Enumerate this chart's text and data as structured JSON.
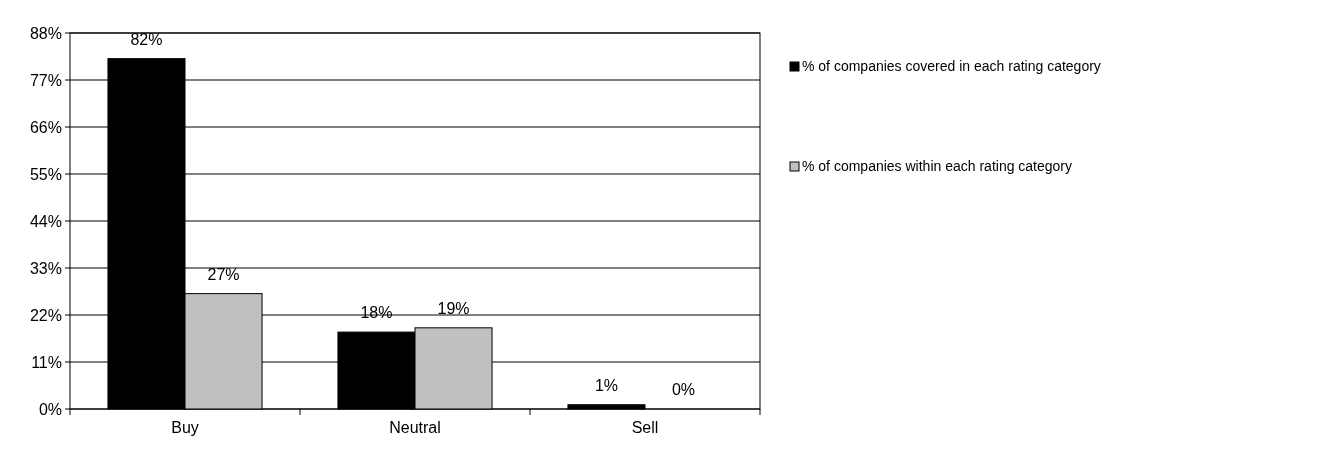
{
  "chart_data": {
    "type": "bar",
    "categories": [
      "Buy",
      "Neutral",
      "Sell"
    ],
    "series": [
      {
        "name": "% of companies covered in each rating category",
        "color": "#000000",
        "values": [
          82,
          18,
          1
        ]
      },
      {
        "name": "% of companies within each rating category",
        "color": "#c0c0c0",
        "values": [
          27,
          19,
          0
        ]
      }
    ],
    "ylim": [
      0,
      88
    ],
    "yticks": [
      {
        "value": 0,
        "label": "0%"
      },
      {
        "value": 11,
        "label": "11%"
      },
      {
        "value": 22,
        "label": "22%"
      },
      {
        "value": 33,
        "label": "33%"
      },
      {
        "value": 44,
        "label": "44%"
      },
      {
        "value": 55,
        "label": "55%"
      },
      {
        "value": 66,
        "label": "66%"
      },
      {
        "value": 77,
        "label": "77%"
      },
      {
        "value": 88,
        "label": "88%"
      }
    ],
    "value_labels": [
      [
        "82%",
        "18%",
        "1%"
      ],
      [
        "27%",
        "19%",
        "0%"
      ]
    ],
    "grid": "y",
    "legend": "right"
  }
}
